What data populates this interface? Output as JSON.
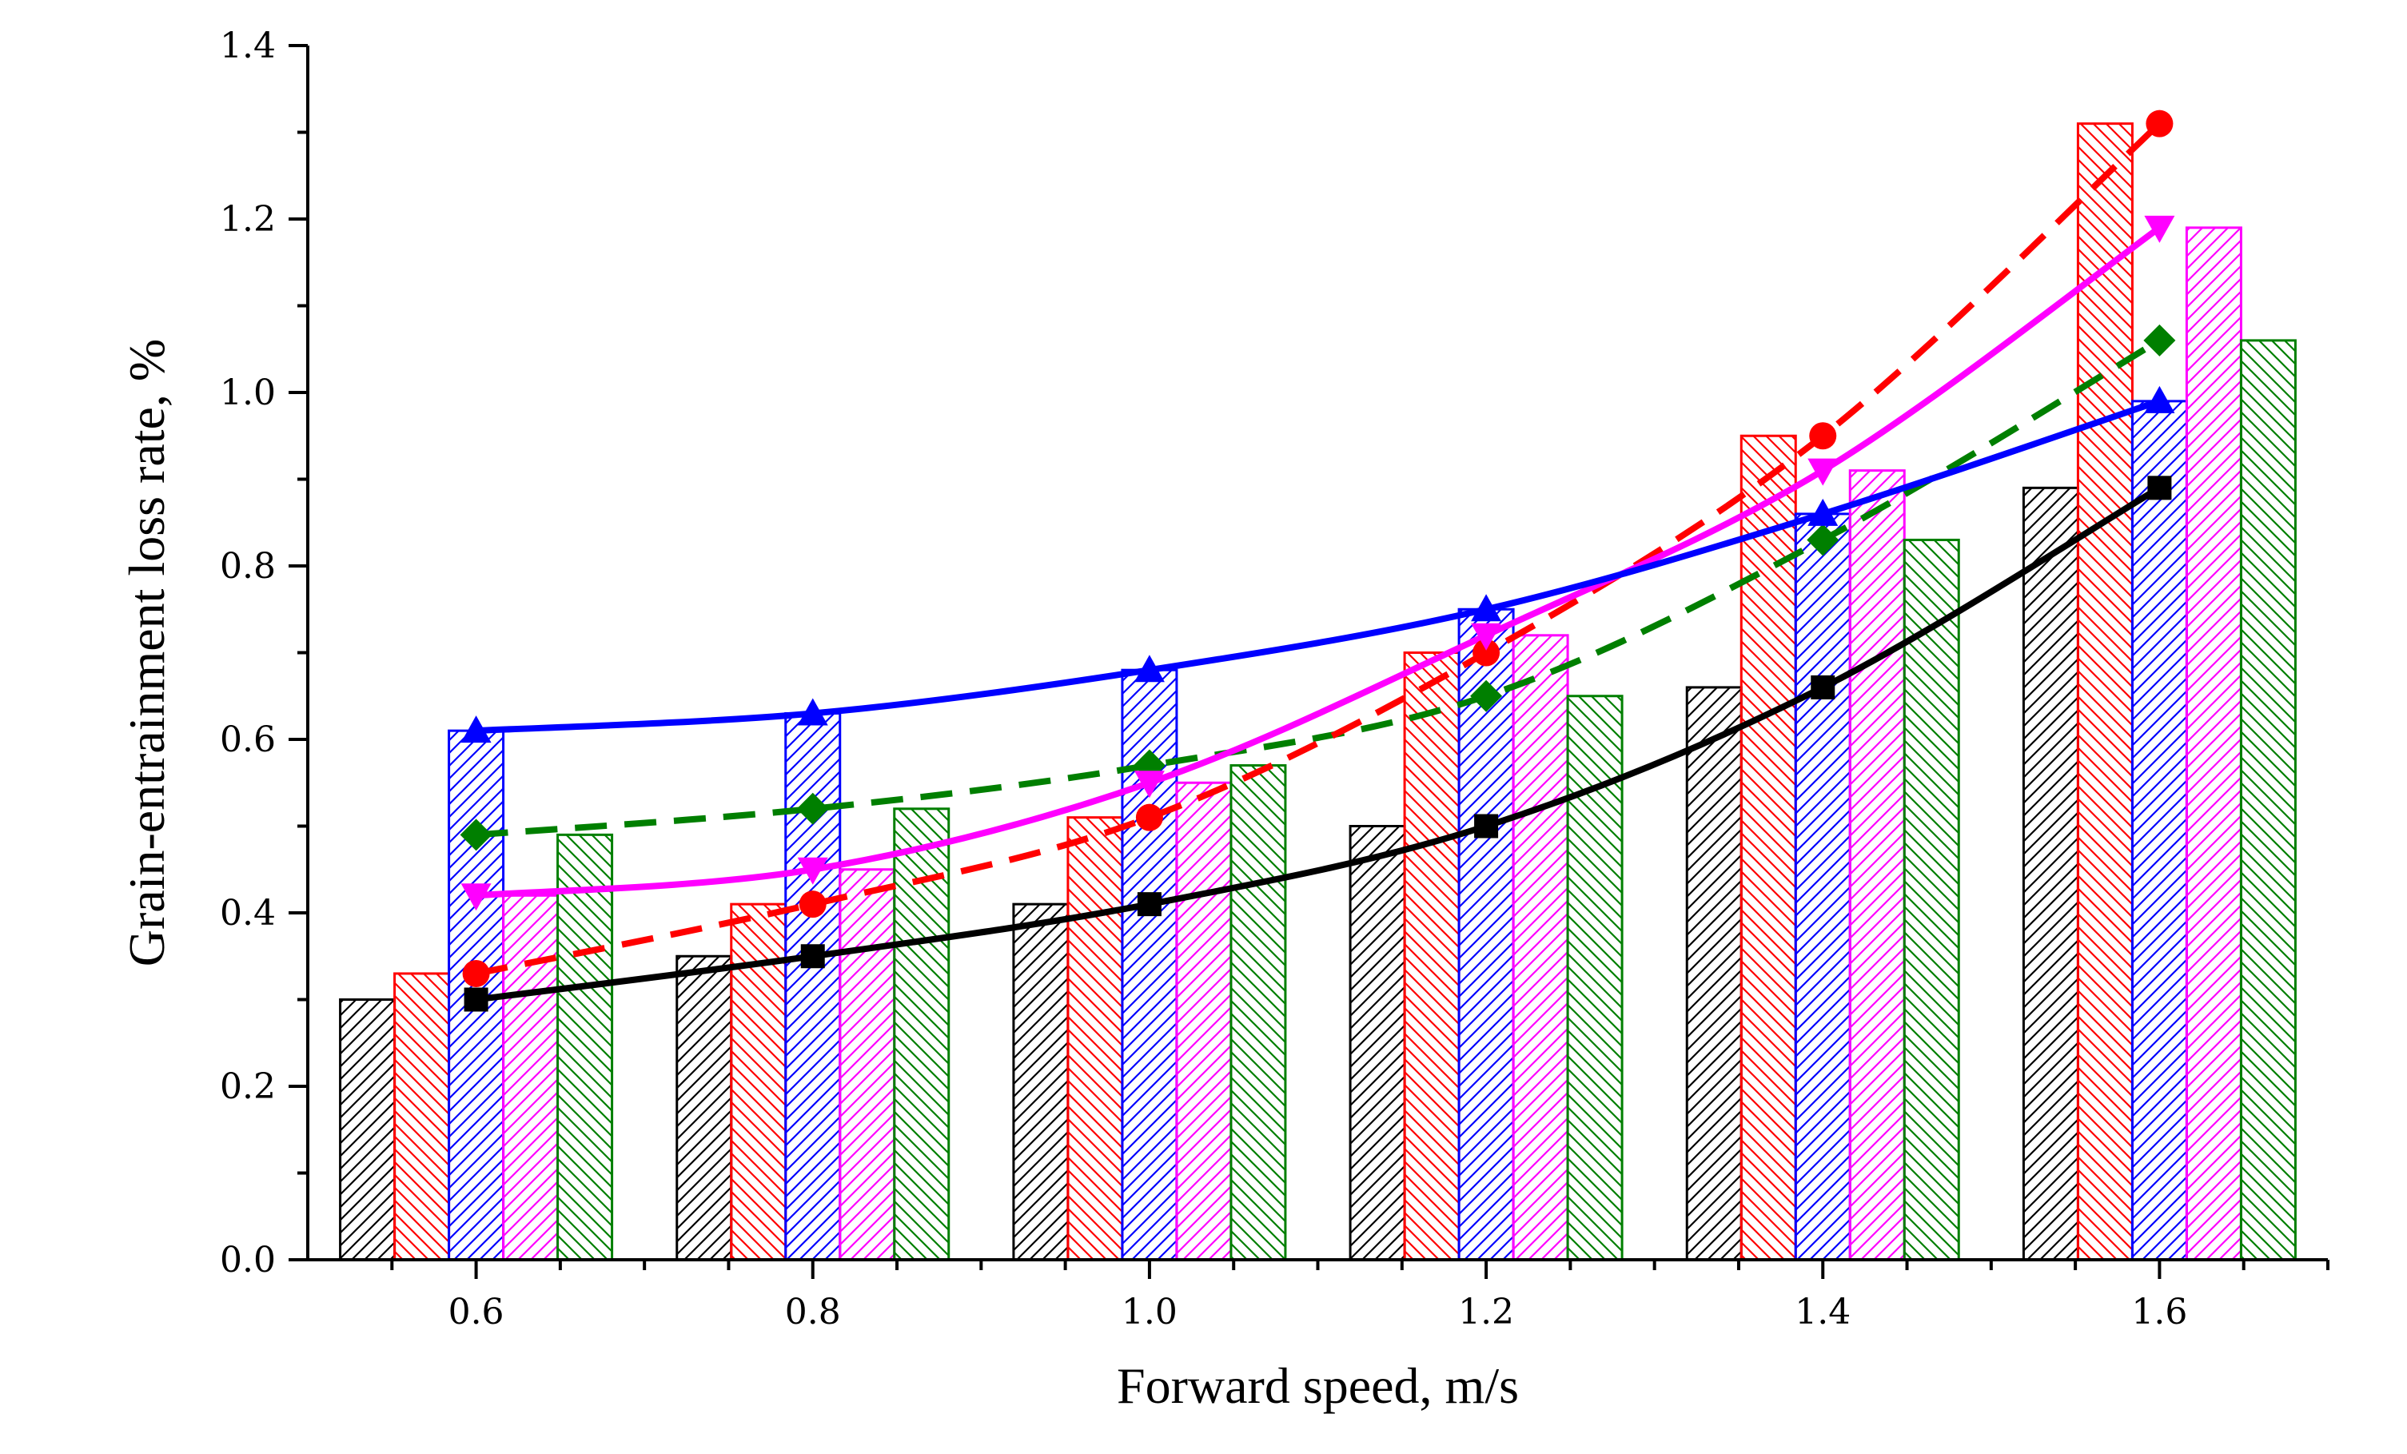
{
  "chart_data": {
    "type": "bar",
    "title": "",
    "xlabel": "Forward speed, m/s",
    "ylabel": "Grain-entrainment loss rate, %",
    "xlim": [
      0.5,
      1.7
    ],
    "ylim": [
      0,
      1.4
    ],
    "x": [
      0.6,
      0.8,
      1.0,
      1.2,
      1.4,
      1.6
    ],
    "x_tick_labels": [
      "0.6",
      "0.8",
      "1.0",
      "1.2",
      "1.4",
      "1.6"
    ],
    "y_ticks": [
      0.0,
      0.2,
      0.4,
      0.6,
      0.8,
      1.0,
      1.2,
      1.4
    ],
    "y_tick_labels": [
      "0.0",
      "0.2",
      "0.4",
      "0.6",
      "0.8",
      "1.0",
      "1.2",
      "1.4"
    ],
    "legend": "none",
    "grid": false,
    "series": [
      {
        "name": "black",
        "color": "#000000",
        "marker": "square",
        "line_style": "solid",
        "hatch": "forward",
        "values": [
          0.3,
          0.35,
          0.41,
          0.5,
          0.66,
          0.89
        ]
      },
      {
        "name": "red",
        "color": "#ff0000",
        "marker": "circle",
        "line_style": "dashed",
        "hatch": "back",
        "values": [
          0.33,
          0.41,
          0.51,
          0.7,
          0.95,
          1.31
        ]
      },
      {
        "name": "blue",
        "color": "#0000ff",
        "marker": "triangle-up",
        "line_style": "solid",
        "hatch": "forward",
        "values": [
          0.61,
          0.63,
          0.68,
          0.75,
          0.86,
          0.99
        ]
      },
      {
        "name": "magenta",
        "color": "#ff00ff",
        "marker": "triangle-down",
        "line_style": "solid",
        "hatch": "forward",
        "values": [
          0.42,
          0.45,
          0.55,
          0.72,
          0.91,
          1.19
        ]
      },
      {
        "name": "green",
        "color": "#007f00",
        "marker": "diamond",
        "line_style": "dashed",
        "hatch": "back",
        "values": [
          0.49,
          0.52,
          0.57,
          0.65,
          0.83,
          1.06
        ]
      }
    ]
  }
}
